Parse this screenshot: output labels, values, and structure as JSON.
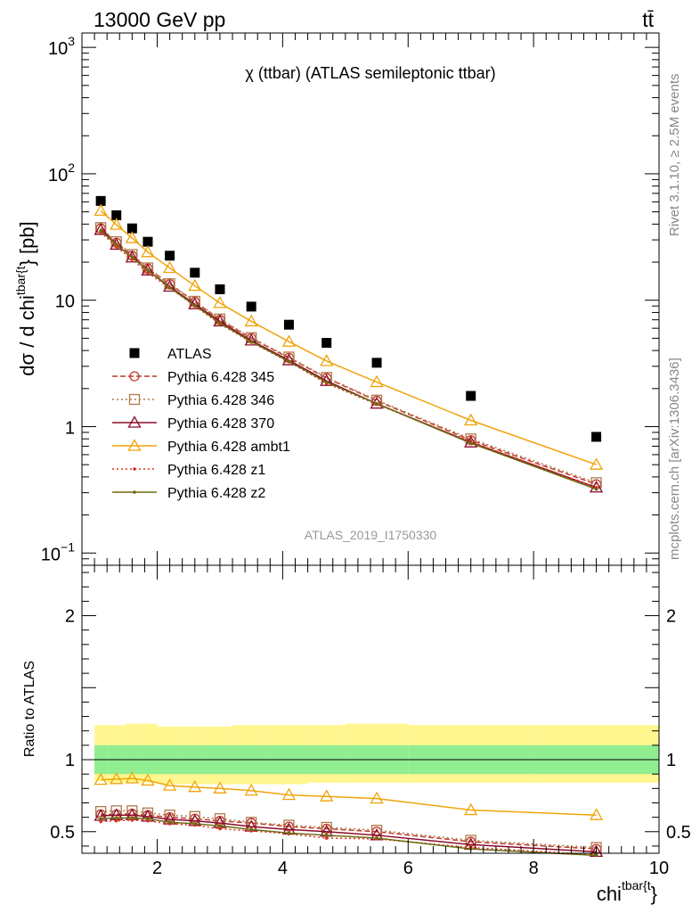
{
  "header": {
    "left": "13000 GeV pp",
    "right": "tt̄"
  },
  "side_labels": {
    "rivet": "Rivet 3.1.10, ≥ 2.5M events",
    "mcplots": "mcplots.cern.ch [arXiv:1306.3436]"
  },
  "chart_data": [
    {
      "type": "scatter",
      "panel": "main",
      "title": "χ (ttbar) (ATLAS semileptonic ttbar)",
      "ylabel": "dσ / d chi^{ttbar{t}} [pb]",
      "ylabel_main": "dσ / d chi",
      "ylabel_sup": "tbar{t",
      "ylabel_tail": "} [pb]",
      "watermark": "ATLAS_2019_I1750330",
      "yscale": "log",
      "xlim": [
        0.8,
        10
      ],
      "ylim": [
        0.08,
        1300
      ],
      "yticks": [
        {
          "v": 0.1,
          "base": "10",
          "exp": "−1"
        },
        {
          "v": 1,
          "base": "1",
          "exp": ""
        },
        {
          "v": 10,
          "base": "10",
          "exp": ""
        },
        {
          "v": 100,
          "base": "10",
          "exp": "2"
        },
        {
          "v": 1000,
          "base": "10",
          "exp": "3"
        }
      ],
      "legend_position": "center-left",
      "x": [
        1.1,
        1.35,
        1.6,
        1.85,
        2.2,
        2.6,
        3.0,
        3.5,
        4.1,
        4.7,
        5.5,
        7.0,
        9.0
      ],
      "series": [
        {
          "name": "ATLAS",
          "color": "#000000",
          "marker": "square-filled",
          "line": "none",
          "values": [
            61,
            47,
            37,
            29,
            22.5,
            16.5,
            12.2,
            8.9,
            6.4,
            4.6,
            3.2,
            1.75,
            0.83
          ]
        },
        {
          "name": "Pythia 6.428 345",
          "color": "#c0392b",
          "marker": "circle-open",
          "line": "dashed",
          "values": [
            37,
            28.5,
            22.5,
            17.8,
            13.4,
            9.7,
            7.0,
            5.0,
            3.5,
            2.42,
            1.6,
            0.78,
            0.35
          ]
        },
        {
          "name": "Pythia 6.428 346",
          "color": "#b07a4a",
          "marker": "square-open",
          "line": "dotted",
          "values": [
            37.5,
            29,
            23,
            18,
            13.5,
            9.8,
            7.1,
            5.05,
            3.55,
            2.45,
            1.62,
            0.8,
            0.36
          ]
        },
        {
          "name": "Pythia 6.428 370",
          "color": "#8b0a2a",
          "marker": "triangle-open",
          "line": "solid",
          "values": [
            36,
            27.5,
            21.8,
            17.2,
            12.8,
            9.3,
            6.8,
            4.8,
            3.35,
            2.3,
            1.52,
            0.75,
            0.33
          ]
        },
        {
          "name": "Pythia 6.428 ambt1",
          "color": "#f0a30a",
          "marker": "triangle-open",
          "line": "solid",
          "values": [
            51,
            39.5,
            31,
            24,
            18,
            13,
            9.5,
            6.8,
            4.7,
            3.3,
            2.25,
            1.12,
            0.5
          ]
        },
        {
          "name": "Pythia 6.428 z1",
          "color": "#e0301e",
          "marker": "dot",
          "line": "dotted",
          "values": [
            34.5,
            26.5,
            21,
            16.5,
            12.5,
            9.0,
            6.5,
            4.65,
            3.25,
            2.2,
            1.5,
            0.76,
            0.33
          ]
        },
        {
          "name": "Pythia 6.428 z2",
          "color": "#6b6b10",
          "marker": "dot",
          "line": "solid",
          "values": [
            35.5,
            27.5,
            21.8,
            17.2,
            12.6,
            9.1,
            6.6,
            4.7,
            3.28,
            2.25,
            1.52,
            0.74,
            0.32
          ]
        }
      ]
    },
    {
      "type": "line",
      "panel": "ratio",
      "ylabel": "Ratio to ATLAS",
      "xlabel": "chi^{tbar{t}}",
      "xlabel_main": "chi",
      "xlabel_sup": "tbar{t",
      "xlabel_tail": "}",
      "xlim": [
        0.8,
        10
      ],
      "ylim": [
        0.35,
        2.35
      ],
      "xticks": [
        2,
        4,
        6,
        8,
        10
      ],
      "yticks": [
        0.5,
        1,
        2
      ],
      "bands": {
        "x_edges": [
          1.0,
          1.2,
          1.5,
          1.7,
          2.0,
          2.4,
          2.8,
          3.2,
          3.8,
          4.4,
          5.0,
          6.0,
          8.0,
          10.0
        ],
        "stat": {
          "color": "#90ee90",
          "lo": [
            0.9,
            0.9,
            0.9,
            0.9,
            0.9,
            0.9,
            0.9,
            0.9,
            0.9,
            0.9,
            0.9,
            0.9,
            0.9
          ],
          "hi": [
            1.1,
            1.1,
            1.1,
            1.1,
            1.1,
            1.1,
            1.1,
            1.1,
            1.1,
            1.1,
            1.1,
            1.1,
            1.1
          ]
        },
        "total": {
          "color": "#fff68f",
          "lo": [
            0.85,
            0.84,
            0.84,
            0.84,
            0.83,
            0.83,
            0.83,
            0.83,
            0.83,
            0.84,
            0.84,
            0.84,
            0.84
          ],
          "hi": [
            1.24,
            1.24,
            1.25,
            1.25,
            1.23,
            1.23,
            1.23,
            1.24,
            1.24,
            1.24,
            1.25,
            1.24,
            1.24
          ]
        }
      },
      "reference_line": 1,
      "series": [
        {
          "name": "Pythia 6.428 345",
          "values": [
            0.62,
            0.62,
            0.625,
            0.615,
            0.6,
            0.59,
            0.575,
            0.56,
            0.535,
            0.52,
            0.5,
            0.43,
            0.38
          ]
        },
        {
          "name": "Pythia 6.428 346",
          "values": [
            0.64,
            0.645,
            0.645,
            0.63,
            0.615,
            0.605,
            0.59,
            0.565,
            0.545,
            0.53,
            0.51,
            0.44,
            0.39
          ]
        },
        {
          "name": "Pythia 6.428 370",
          "values": [
            0.61,
            0.615,
            0.615,
            0.605,
            0.585,
            0.575,
            0.56,
            0.535,
            0.515,
            0.5,
            0.475,
            0.41,
            0.36
          ]
        },
        {
          "name": "Pythia 6.428 ambt1",
          "values": [
            0.86,
            0.865,
            0.87,
            0.855,
            0.82,
            0.81,
            0.8,
            0.785,
            0.755,
            0.745,
            0.73,
            0.65,
            0.615
          ]
        },
        {
          "name": "Pythia 6.428 z1",
          "values": [
            0.57,
            0.575,
            0.58,
            0.575,
            0.555,
            0.545,
            0.52,
            0.505,
            0.485,
            0.455,
            0.45,
            0.39,
            0.34
          ]
        },
        {
          "name": "Pythia 6.428 z2",
          "values": [
            0.59,
            0.595,
            0.595,
            0.59,
            0.565,
            0.555,
            0.54,
            0.515,
            0.49,
            0.475,
            0.455,
            0.38,
            0.335
          ]
        }
      ]
    }
  ]
}
